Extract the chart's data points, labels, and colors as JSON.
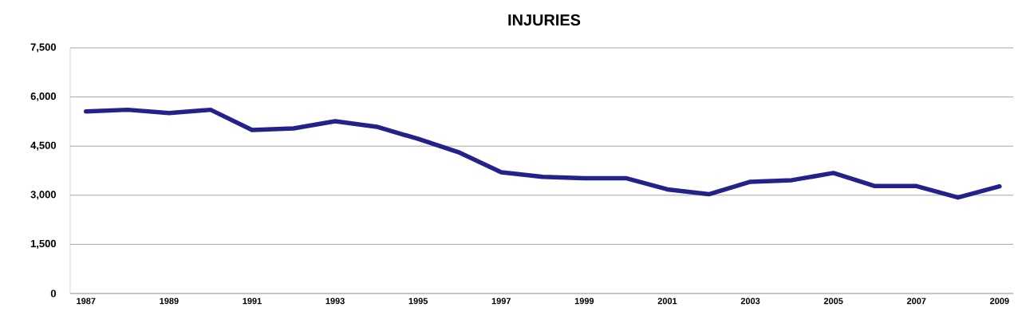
{
  "chart_data": {
    "type": "line",
    "title": "INJURIES",
    "categories": [
      "1987",
      null,
      "1989",
      null,
      "1991",
      null,
      "1993",
      null,
      "1995",
      null,
      "1997",
      null,
      "1999",
      null,
      "2001",
      null,
      "2003",
      null,
      "2005",
      null,
      "2007",
      null,
      "2009"
    ],
    "series": [
      {
        "color": "#22228a",
        "values": [
          5560,
          5610,
          5510,
          5610,
          4990,
          5040,
          5260,
          5090,
          4720,
          4300,
          3700,
          3560,
          3520,
          3520,
          3180,
          3030,
          3410,
          3460,
          3680,
          3280,
          3280,
          2930,
          3270
        ]
      }
    ],
    "ylim": [
      0,
      7500
    ],
    "yticks": [
      {
        "value": 0,
        "label": "0"
      },
      {
        "value": 1500,
        "label": "1,500"
      },
      {
        "value": 3000,
        "label": "3,000"
      },
      {
        "value": 4500,
        "label": "4,500"
      },
      {
        "value": 6000,
        "label": "6,000"
      },
      {
        "value": 7500,
        "label": "7,500"
      }
    ],
    "grid": "y",
    "marker": "none",
    "line_style": "solid"
  }
}
